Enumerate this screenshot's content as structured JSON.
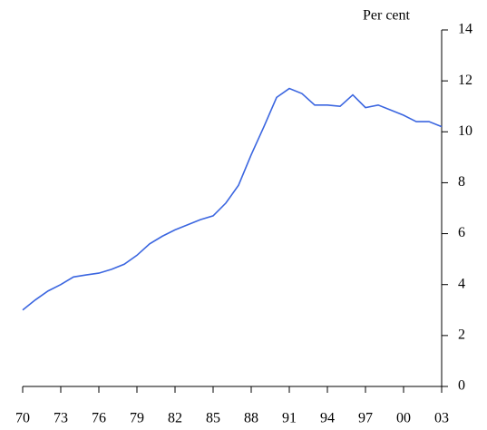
{
  "chart_data": {
    "type": "line",
    "y_axis_label": "Per cent",
    "categories": [
      "70",
      null,
      null,
      "73",
      null,
      null,
      "76",
      null,
      null,
      "79",
      null,
      null,
      "82",
      null,
      null,
      "85",
      null,
      null,
      "88",
      null,
      null,
      "91",
      null,
      null,
      "94",
      null,
      null,
      "97",
      null,
      null,
      "00",
      null,
      null,
      "03"
    ],
    "series": [
      {
        "color": "#3b66e0",
        "values": [
          3.0,
          3.4,
          3.75,
          4.0,
          4.3,
          4.38,
          4.45,
          4.6,
          4.8,
          5.15,
          5.6,
          5.9,
          6.15,
          6.35,
          6.55,
          6.7,
          7.2,
          7.9,
          9.1,
          10.2,
          11.35,
          11.7,
          11.5,
          11.05,
          11.05,
          11.0,
          11.45,
          10.95,
          11.05,
          10.85,
          10.65,
          10.4,
          10.4,
          10.2
        ]
      }
    ],
    "ylim": [
      0,
      14
    ],
    "yticks": [
      0,
      2,
      4,
      6,
      8,
      10,
      12,
      14
    ],
    "y_axis_side": "right"
  }
}
